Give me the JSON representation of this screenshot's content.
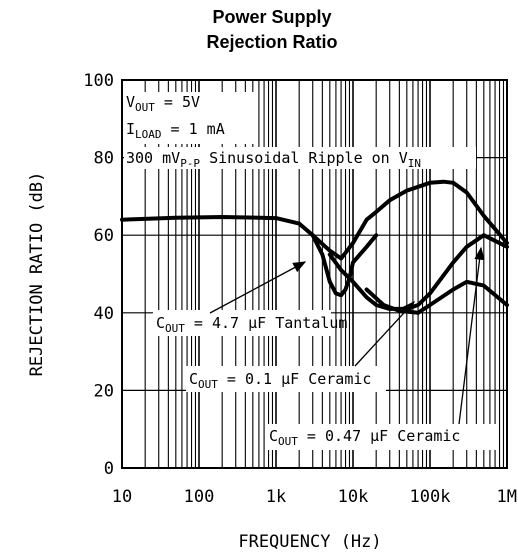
{
  "chart_data": {
    "type": "line",
    "title_line1": "Power Supply",
    "title_line2": "Rejection Ratio",
    "xlabel": "FREQUENCY (Hz)",
    "ylabel": "REJECTION RATIO (dB)",
    "xscale": "log",
    "xlim": [
      10,
      1000000
    ],
    "ylim": [
      0,
      100
    ],
    "x_ticks": [
      10,
      100,
      1000,
      10000,
      100000,
      1000000
    ],
    "x_tick_labels": [
      "10",
      "100",
      "1k",
      "10k",
      "100k",
      "1M"
    ],
    "y_ticks": [
      0,
      20,
      40,
      60,
      80,
      100
    ],
    "y_tick_labels": [
      "0",
      "20",
      "40",
      "60",
      "80",
      "100"
    ],
    "grid": true,
    "conditions": {
      "vout": {
        "main": "V",
        "sub": "OUT",
        "rest": " = 5V"
      },
      "iload": {
        "main": "I",
        "sub": "LOAD",
        "rest": " = 1 mA"
      },
      "ripple": {
        "main": "300 mV",
        "sub": "P-P",
        "rest": " Sinusoidal Ripple on V",
        "sub2": "IN"
      }
    },
    "series": [
      {
        "name_main": "C",
        "name_sub": "OUT",
        "name_rest": " = 4.7 µF Tantalum",
        "x": [
          10,
          50,
          200,
          1000,
          2000,
          3000,
          4000,
          5000,
          6000,
          7000,
          8000,
          9000,
          10000,
          15000,
          20000
        ],
        "y": [
          64,
          64.5,
          64.7,
          64.4,
          63,
          60,
          55,
          48,
          45,
          44.5,
          46,
          49,
          53,
          57,
          60
        ]
      },
      {
        "name_main": "C",
        "name_sub": "OUT",
        "name_rest": " = 0.1 µF Ceramic",
        "x": [
          3000,
          5000,
          7000,
          10000,
          15000,
          20000,
          30000,
          50000,
          100000,
          150000,
          200000,
          300000,
          500000,
          1000000
        ],
        "y": [
          60,
          56,
          54,
          58,
          64,
          66,
          69,
          71.5,
          73.5,
          73.8,
          73.5,
          71,
          65,
          58
        ]
      },
      {
        "name_main": "C",
        "name_sub": "OUT",
        "name_rest": " = 0.47 µF Ceramic",
        "x": [
          5000,
          7000,
          10000,
          15000,
          20000,
          30000,
          50000,
          70000,
          100000,
          200000,
          300000,
          500000,
          1000000
        ],
        "y": [
          55,
          51,
          48,
          44,
          42,
          41,
          41,
          42,
          45,
          53,
          57,
          60,
          57
        ]
      },
      {
        "name_main": "",
        "name_sub": "",
        "name_rest": "",
        "x": [
          15000,
          25000,
          40000,
          70000,
          100000,
          200000,
          300000,
          500000,
          1000000
        ],
        "y": [
          46,
          42,
          40.5,
          40,
          42,
          46,
          48,
          47,
          42
        ]
      }
    ]
  }
}
